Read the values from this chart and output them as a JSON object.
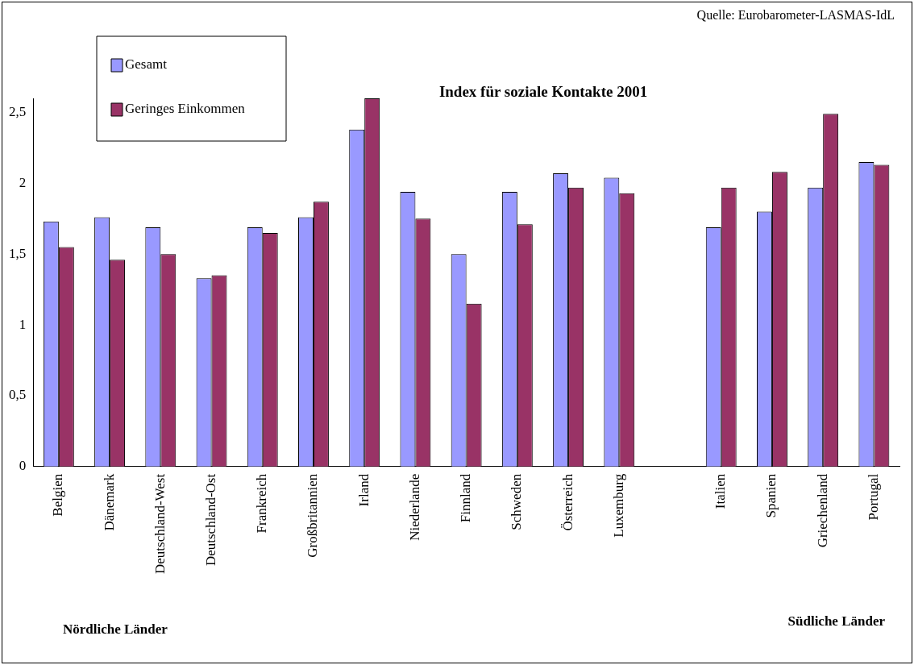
{
  "chart_data": {
    "type": "bar",
    "title": "Index für soziale Kontakte 2001",
    "categories": [
      "Belgien",
      "Dänemark",
      "Deutschland-West",
      "Deutschland-Ost",
      "Frankreich",
      "Großbritannien",
      "Irland",
      "Niederlande",
      "Finnland",
      "Schweden",
      "Österreich",
      "Luxemburg",
      null,
      "Italien",
      "Spanien",
      "Griechenland",
      "Portugal"
    ],
    "series": [
      {
        "name": "Gesamt",
        "color": "#9999ff",
        "values": [
          1.73,
          1.76,
          1.69,
          1.33,
          1.69,
          1.76,
          2.38,
          1.94,
          1.5,
          1.94,
          2.07,
          2.04,
          null,
          1.69,
          1.8,
          1.97,
          2.15
        ]
      },
      {
        "name": "Geringes Einkommen",
        "color": "#993366",
        "values": [
          1.55,
          1.46,
          1.5,
          1.35,
          1.65,
          1.87,
          2.6,
          1.75,
          1.15,
          1.71,
          1.97,
          1.93,
          null,
          1.97,
          2.08,
          2.49,
          2.13
        ]
      }
    ],
    "ylim": [
      0,
      2.6
    ],
    "yticks": [
      0,
      {
        "value": 0.5,
        "label": "0,5"
      },
      1,
      {
        "value": 1.5,
        "label": "1,5"
      },
      2,
      {
        "value": 2.5,
        "label": "2,5"
      }
    ],
    "grid": false,
    "legend": "top left",
    "annotations": [
      "Quelle: Eurobarometer-LASMAS-IdL",
      "Nördliche Länder",
      "Südliche Länder"
    ]
  }
}
